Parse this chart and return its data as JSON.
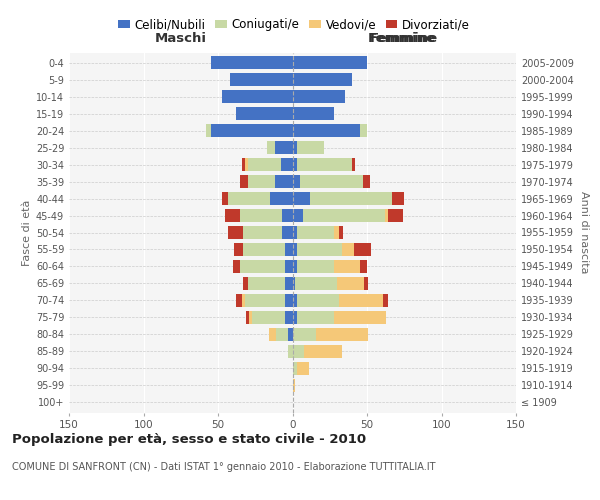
{
  "age_groups": [
    "100+",
    "95-99",
    "90-94",
    "85-89",
    "80-84",
    "75-79",
    "70-74",
    "65-69",
    "60-64",
    "55-59",
    "50-54",
    "45-49",
    "40-44",
    "35-39",
    "30-34",
    "25-29",
    "20-24",
    "15-19",
    "10-14",
    "5-9",
    "0-4"
  ],
  "birth_years": [
    "≤ 1909",
    "1910-1914",
    "1915-1919",
    "1920-1924",
    "1925-1929",
    "1930-1934",
    "1935-1939",
    "1940-1944",
    "1945-1949",
    "1950-1954",
    "1955-1959",
    "1960-1964",
    "1965-1969",
    "1970-1974",
    "1975-1979",
    "1980-1984",
    "1985-1989",
    "1990-1994",
    "1995-1999",
    "2000-2004",
    "2005-2009"
  ],
  "maschi": {
    "celibi": [
      0,
      0,
      0,
      0,
      3,
      5,
      5,
      5,
      5,
      5,
      7,
      7,
      15,
      12,
      8,
      12,
      55,
      38,
      47,
      42,
      55
    ],
    "coniugati": [
      0,
      0,
      0,
      3,
      8,
      22,
      27,
      25,
      30,
      28,
      26,
      28,
      28,
      18,
      22,
      5,
      3,
      0,
      0,
      0,
      0
    ],
    "vedovi": [
      0,
      0,
      0,
      0,
      5,
      2,
      2,
      0,
      0,
      0,
      0,
      0,
      0,
      0,
      2,
      0,
      0,
      0,
      0,
      0,
      0
    ],
    "divorziati": [
      0,
      0,
      0,
      0,
      0,
      2,
      4,
      3,
      5,
      6,
      10,
      10,
      4,
      5,
      2,
      0,
      0,
      0,
      0,
      0,
      0
    ]
  },
  "femmine": {
    "nubili": [
      0,
      0,
      0,
      0,
      0,
      3,
      3,
      2,
      3,
      3,
      3,
      7,
      12,
      5,
      3,
      3,
      45,
      28,
      35,
      40,
      50
    ],
    "coniugate": [
      0,
      0,
      3,
      8,
      16,
      25,
      28,
      28,
      25,
      30,
      25,
      55,
      55,
      42,
      37,
      18,
      5,
      0,
      0,
      0,
      0
    ],
    "vedove": [
      0,
      2,
      8,
      25,
      35,
      35,
      30,
      18,
      17,
      8,
      3,
      2,
      0,
      0,
      0,
      0,
      0,
      0,
      0,
      0,
      0
    ],
    "divorziate": [
      0,
      0,
      0,
      0,
      0,
      0,
      3,
      3,
      5,
      12,
      3,
      10,
      8,
      5,
      2,
      0,
      0,
      0,
      0,
      0,
      0
    ]
  },
  "colors": {
    "celibi": "#4472C4",
    "coniugati": "#C8D9A5",
    "vedovi": "#F5C878",
    "divorziati": "#C0392B"
  },
  "xlim": 150,
  "title": "Popolazione per età, sesso e stato civile - 2010",
  "subtitle": "COMUNE DI SANFRONT (CN) - Dati ISTAT 1° gennaio 2010 - Elaborazione TUTTITALIA.IT",
  "xlabel_left": "Maschi",
  "xlabel_right": "Femmine",
  "ylabel_left": "Fasce di età",
  "ylabel_right": "Anni di nascita",
  "legend_labels": [
    "Celibi/Nubili",
    "Coniugati/e",
    "Vedovi/e",
    "Divorziati/e"
  ]
}
